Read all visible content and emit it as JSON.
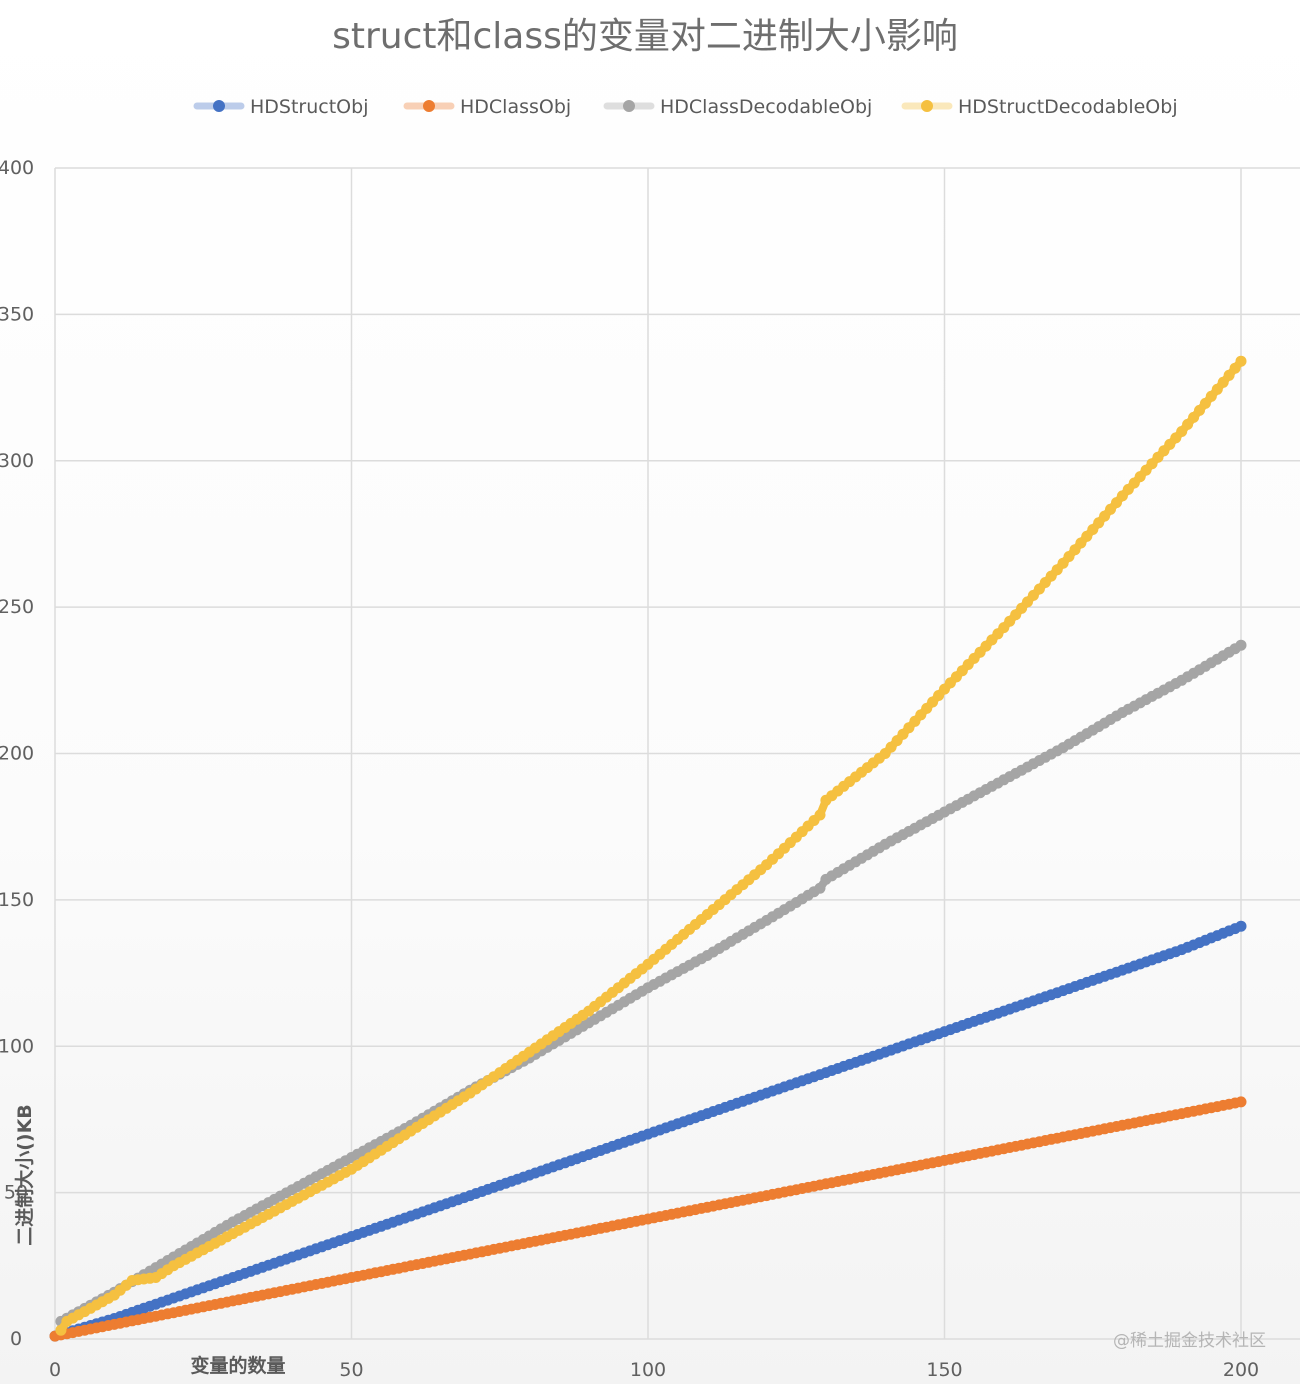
{
  "chart_data": {
    "type": "scatter",
    "title": "struct和class的变量对二进制大小影响",
    "xlabel": "变量的数量",
    "ylabel": "二进制大小()KB",
    "xlim": [
      0,
      200
    ],
    "ylim": [
      0,
      400
    ],
    "x_ticks": [
      "0",
      "50",
      "100",
      "150",
      "200"
    ],
    "y_ticks": [
      "0",
      "50",
      "100",
      "150",
      "200",
      "250",
      "300",
      "350",
      "400"
    ],
    "grid": true,
    "legend_position": "top",
    "watermark": "@稀土掘金技术社区",
    "series": [
      {
        "name": "HDStructObj",
        "color": "#4472c4",
        "points": [
          [
            0,
            1
          ],
          [
            10,
            7
          ],
          [
            20,
            14
          ],
          [
            30,
            21
          ],
          [
            40,
            28
          ],
          [
            50,
            35
          ],
          [
            60,
            42
          ],
          [
            70,
            49
          ],
          [
            80,
            56
          ],
          [
            90,
            63
          ],
          [
            100,
            70
          ],
          [
            110,
            77
          ],
          [
            120,
            84
          ],
          [
            130,
            91
          ],
          [
            140,
            98
          ],
          [
            150,
            105
          ],
          [
            160,
            112
          ],
          [
            170,
            119
          ],
          [
            180,
            126
          ],
          [
            190,
            133
          ],
          [
            200,
            141
          ]
        ]
      },
      {
        "name": "HDClassObj",
        "color": "#ed7d31",
        "points": [
          [
            0,
            1
          ],
          [
            10,
            5
          ],
          [
            20,
            9
          ],
          [
            30,
            13
          ],
          [
            40,
            17
          ],
          [
            50,
            21
          ],
          [
            60,
            25
          ],
          [
            70,
            29
          ],
          [
            80,
            33
          ],
          [
            90,
            37
          ],
          [
            100,
            41
          ],
          [
            110,
            45
          ],
          [
            120,
            49
          ],
          [
            130,
            53
          ],
          [
            140,
            57
          ],
          [
            150,
            61
          ],
          [
            160,
            65
          ],
          [
            170,
            69
          ],
          [
            180,
            73
          ],
          [
            190,
            77
          ],
          [
            200,
            81
          ]
        ]
      },
      {
        "name": "HDClassDecodableObj",
        "color": "#a5a5a5",
        "points": [
          [
            1,
            6
          ],
          [
            10,
            16
          ],
          [
            20,
            28
          ],
          [
            30,
            40
          ],
          [
            40,
            51
          ],
          [
            50,
            62
          ],
          [
            60,
            73
          ],
          [
            70,
            85
          ],
          [
            80,
            96
          ],
          [
            90,
            108
          ],
          [
            100,
            120
          ],
          [
            110,
            131
          ],
          [
            120,
            143
          ],
          [
            129,
            154
          ],
          [
            130,
            157
          ],
          [
            140,
            169
          ],
          [
            150,
            180
          ],
          [
            160,
            191
          ],
          [
            170,
            202
          ],
          [
            180,
            214
          ],
          [
            190,
            225
          ],
          [
            200,
            237
          ]
        ]
      },
      {
        "name": "HDStructDecodableObj",
        "color": "#f5c040",
        "points": [
          [
            1,
            3
          ],
          [
            2,
            6
          ],
          [
            10,
            15
          ],
          [
            13,
            20
          ],
          [
            17,
            21
          ],
          [
            20,
            25
          ],
          [
            30,
            36
          ],
          [
            40,
            47
          ],
          [
            50,
            58
          ],
          [
            60,
            71
          ],
          [
            70,
            84
          ],
          [
            80,
            98
          ],
          [
            90,
            112
          ],
          [
            100,
            128
          ],
          [
            110,
            145
          ],
          [
            120,
            162
          ],
          [
            129,
            179
          ],
          [
            130,
            184
          ],
          [
            140,
            200
          ],
          [
            150,
            222
          ],
          [
            160,
            243
          ],
          [
            170,
            265
          ],
          [
            180,
            288
          ],
          [
            190,
            310
          ],
          [
            200,
            334
          ]
        ]
      }
    ]
  }
}
